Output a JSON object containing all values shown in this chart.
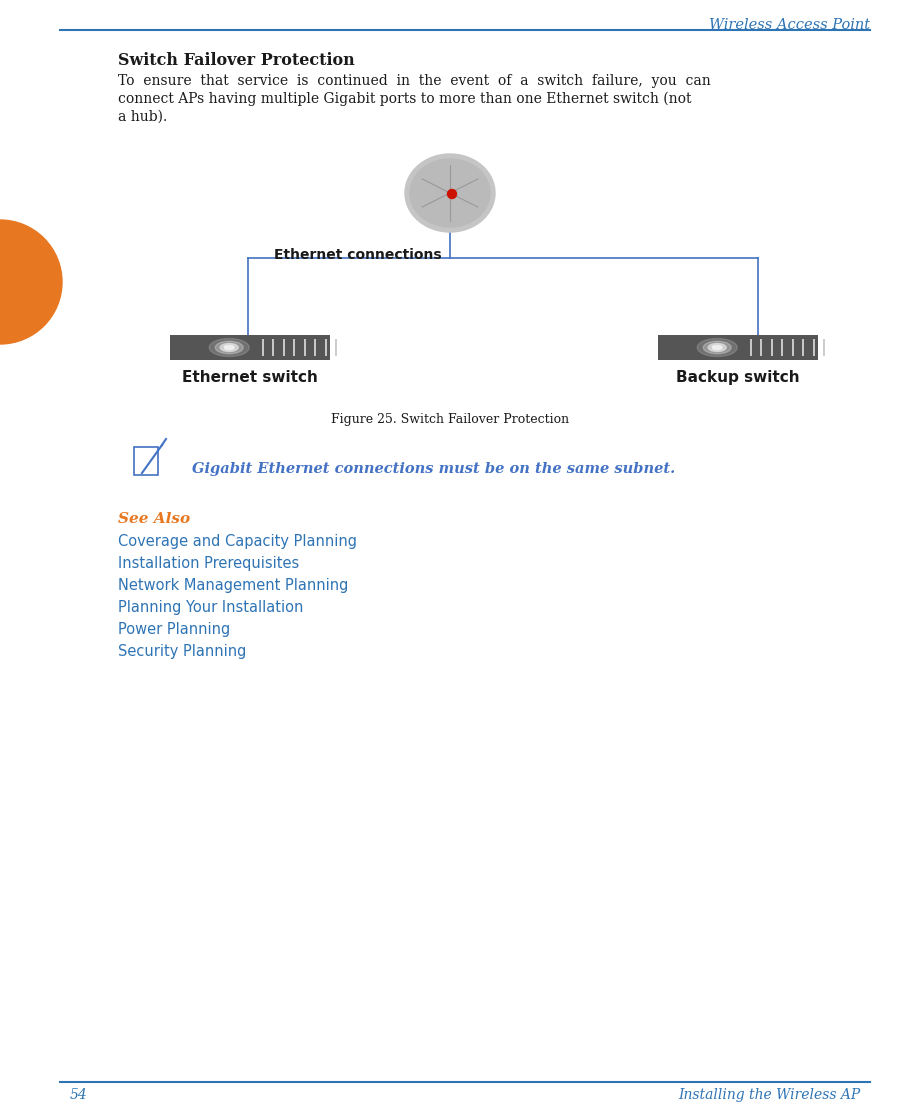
{
  "page_title": "Wireless Access Point",
  "top_line_color": "#2E74B5",
  "bottom_line_color": "#2E74B5",
  "section_title": "Switch Failover Protection",
  "body_text_line1": "To  ensure  that  service  is  continued  in  the  event  of  a  switch  failure,  you  can",
  "body_text_line2": "connect APs having multiple Gigabit ports to more than one Ethernet switch (not",
  "body_text_line3": "a hub).",
  "figure_caption": "Figure 25. Switch Failover Protection",
  "eth_conn_label": "Ethernet connections",
  "eth_switch_label": "Ethernet switch",
  "backup_switch_label": "Backup switch",
  "note_text": "Gigabit Ethernet connections must be on the same subnet.",
  "see_also_label": "See Also",
  "see_also_color": "#E87722",
  "links_color": "#2E74B5",
  "links": [
    "Coverage and Capacity Planning",
    "Installation Prerequisites",
    "Network Management Planning",
    "Planning Your Installation",
    "Power Planning",
    "Security Planning"
  ],
  "diagram_line_color": "#4472C4",
  "switch_bar_color": "#555555",
  "orange_circle_color": "#E87722",
  "body_text_color": "#1A1A1A",
  "title_color": "#2E74B5",
  "page_num": "54",
  "footer_right": "Installing the Wireless AP"
}
